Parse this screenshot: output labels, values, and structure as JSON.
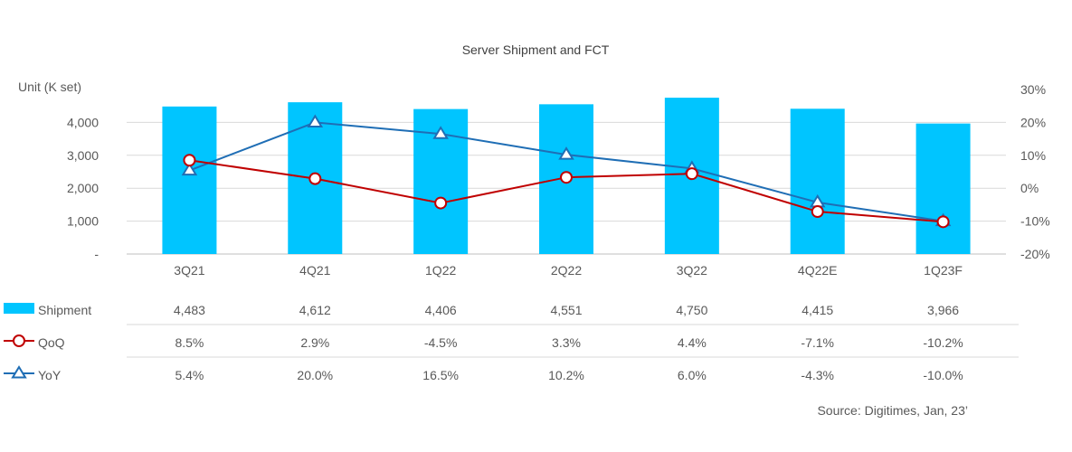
{
  "chart_data": {
    "type": "bar",
    "title": "Server Shipment and FCT",
    "ylabel": "Unit (K set)",
    "categories": [
      "3Q21",
      "4Q21",
      "1Q22",
      "2Q22",
      "3Q22",
      "4Q22E",
      "1Q23F"
    ],
    "ylim": [
      0,
      5000
    ],
    "y_ticks": [
      "-",
      "1,000",
      "2,000",
      "3,000",
      "4,000"
    ],
    "y2lim": [
      -0.2,
      0.3
    ],
    "y2_ticks": [
      "-20%",
      "-10%",
      "0%",
      "10%",
      "20%",
      "30%"
    ],
    "grid": true,
    "series": [
      {
        "name": "Shipment",
        "kind": "bar",
        "axis": "left",
        "color": "#00c5ff",
        "values": [
          4483,
          4612,
          4406,
          4551,
          4750,
          4415,
          3966
        ],
        "labels": [
          "4,483",
          "4,612",
          "4,406",
          "4,551",
          "4,750",
          "4,415",
          "3,966"
        ]
      },
      {
        "name": "QoQ",
        "kind": "line",
        "marker": "circle",
        "axis": "right",
        "color": "#c00000",
        "values": [
          0.085,
          0.029,
          -0.045,
          0.033,
          0.044,
          -0.071,
          -0.102
        ],
        "labels": [
          "8.5%",
          "2.9%",
          "-4.5%",
          "3.3%",
          "4.4%",
          "-7.1%",
          "-10.2%"
        ]
      },
      {
        "name": "YoY",
        "kind": "line",
        "marker": "triangle",
        "axis": "right",
        "color": "#1f6eb5",
        "values": [
          0.054,
          0.2,
          0.165,
          0.102,
          0.06,
          -0.043,
          -0.1
        ],
        "labels": [
          "5.4%",
          "20.0%",
          "16.5%",
          "10.2%",
          "6.0%",
          "-4.3%",
          "-10.0%"
        ]
      }
    ],
    "source": "Source: Digitimes, Jan, 23’"
  }
}
